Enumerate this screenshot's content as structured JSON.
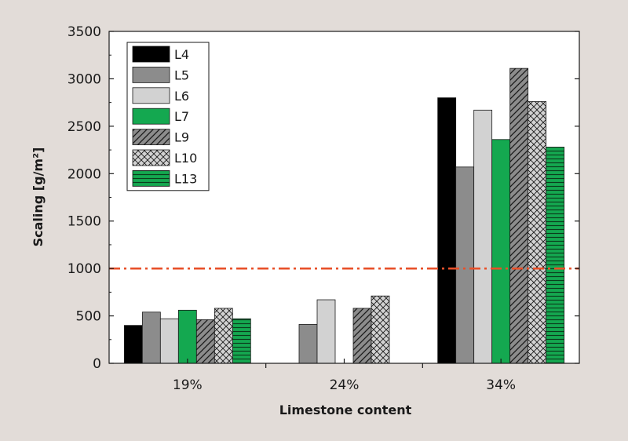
{
  "chart_data": {
    "type": "bar",
    "xlabel": "Limestone content",
    "ylabel": "Scaling [g/m²]",
    "categories": [
      "19%",
      "24%",
      "34%"
    ],
    "ylim": [
      0,
      3500
    ],
    "yticks": [
      0,
      500,
      1000,
      1500,
      2000,
      2500,
      3000,
      3500
    ],
    "grid": false,
    "legend_position": "top-left",
    "threshold": {
      "value": 1000,
      "color": "#e8502a",
      "style": "dash-dot"
    },
    "series": [
      {
        "name": "L4",
        "color": "#000000",
        "pattern": "solid",
        "values": [
          400,
          null,
          2800
        ]
      },
      {
        "name": "L5",
        "color": "#8c8c8c",
        "pattern": "solid",
        "values": [
          540,
          410,
          2070
        ]
      },
      {
        "name": "L6",
        "color": "#d2d2d2",
        "pattern": "solid",
        "values": [
          470,
          670,
          2670
        ]
      },
      {
        "name": "L7",
        "color": "#14a850",
        "pattern": "solid",
        "values": [
          560,
          null,
          2360
        ]
      },
      {
        "name": "L9",
        "color": "#8c8c8c",
        "pattern": "diagonal",
        "values": [
          460,
          580,
          3110
        ]
      },
      {
        "name": "L10",
        "color": "#d2d2d2",
        "pattern": "crosshatch",
        "values": [
          580,
          710,
          2760
        ]
      },
      {
        "name": "L13",
        "color": "#14a850",
        "pattern": "horizontal",
        "values": [
          470,
          null,
          2280
        ]
      }
    ]
  }
}
